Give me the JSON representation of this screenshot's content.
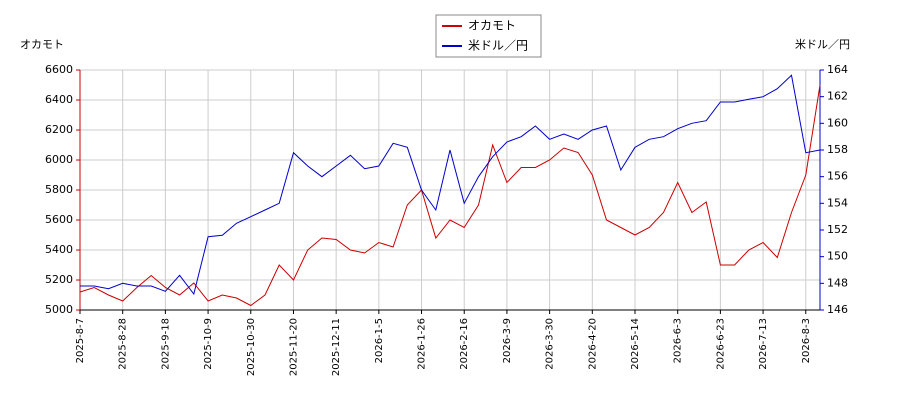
{
  "chart_data": {
    "type": "line",
    "y_label": "オカモト",
    "y2_label": "米ドル／円",
    "categories": [
      "2025-8-7",
      null,
      null,
      "2025-8-28",
      null,
      null,
      "2025-9-18",
      null,
      null,
      "2025-10-9",
      null,
      null,
      "2025-10-30",
      null,
      null,
      "2025-11-20",
      null,
      null,
      "2025-12-11",
      null,
      null,
      "2026-1-5",
      null,
      null,
      "2026-1-26",
      null,
      null,
      "2026-2-16",
      null,
      null,
      "2026-3-9",
      null,
      null,
      "2026-3-30",
      null,
      null,
      "2026-4-20",
      null,
      null,
      "2026-5-14",
      null,
      null,
      "2026-6-3",
      null,
      null,
      "2026-6-23",
      null,
      null,
      "2026-7-13",
      null,
      null,
      "2026-8-3",
      null
    ],
    "series": [
      {
        "name": "オカモト",
        "color": "#cc0000",
        "values": [
          5120,
          5150,
          5100,
          5060,
          5150,
          5230,
          5150,
          5100,
          5180,
          5060,
          5100,
          5080,
          5030,
          5100,
          5300,
          5200,
          5400,
          5480,
          5470,
          5400,
          5380,
          5450,
          5420,
          5700,
          5800,
          5480,
          5600,
          5550,
          5700,
          6100,
          5850,
          5950,
          5950,
          6000,
          6080,
          6050,
          5900,
          5600,
          5550,
          5500,
          5550,
          5650,
          5850,
          5650,
          5720,
          5300,
          5300,
          5400,
          5450,
          5350,
          5650,
          5900,
          6500
        ]
      },
      {
        "name": "米ドル／円",
        "color": "#0000cc",
        "axis": "y2",
        "values": [
          147.8,
          147.8,
          147.6,
          148.0,
          147.8,
          147.8,
          147.4,
          148.6,
          147.2,
          151.5,
          151.6,
          152.5,
          153.0,
          153.5,
          154.0,
          157.8,
          156.8,
          156.0,
          156.8,
          157.6,
          156.6,
          156.8,
          158.5,
          158.2,
          155.0,
          153.5,
          158.0,
          154.0,
          156.0,
          157.5,
          158.6,
          159.0,
          159.8,
          158.8,
          159.2,
          158.8,
          159.5,
          159.8,
          156.5,
          158.2,
          158.8,
          159.0,
          159.6,
          160.0,
          160.2,
          161.6,
          161.6,
          161.8,
          162.0,
          162.6,
          163.6,
          157.8,
          158.0
        ]
      }
    ],
    "ylim": [
      5000,
      6600
    ],
    "yticks": [
      5000,
      5200,
      5400,
      5600,
      5800,
      6000,
      6200,
      6400,
      6600
    ],
    "y2lim": [
      146,
      164
    ],
    "y2ticks": [
      146,
      148,
      150,
      152,
      154,
      156,
      158,
      160,
      162,
      164
    ],
    "grid": true,
    "legend": "top"
  }
}
